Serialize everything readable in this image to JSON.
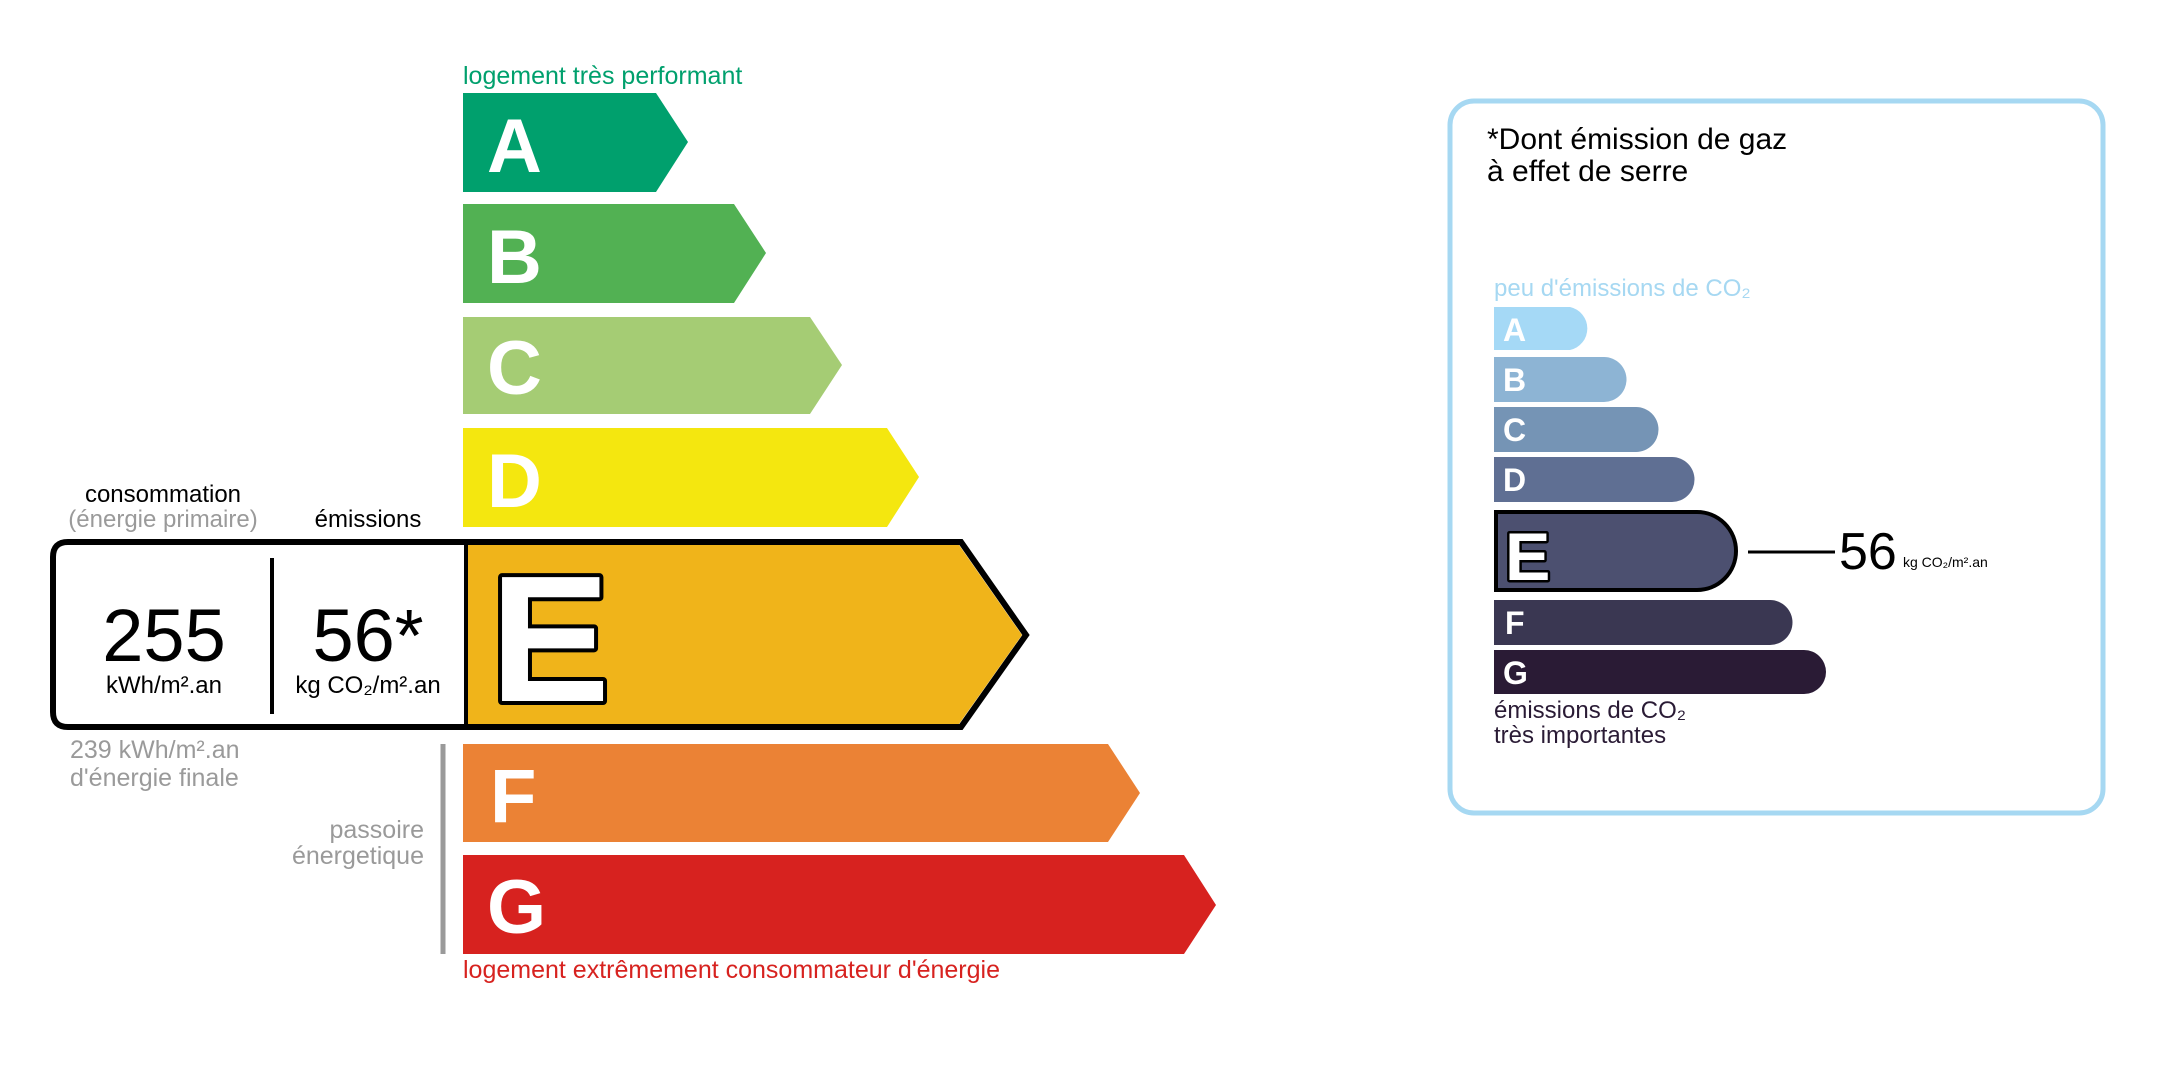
{
  "energy": {
    "top_label": "logement très performant",
    "bottom_label": "logement extrêmement consommateur d'énergie",
    "classes": [
      {
        "letter": "A",
        "color": "#00a06d"
      },
      {
        "letter": "B",
        "color": "#52b153"
      },
      {
        "letter": "C",
        "color": "#a5cc74"
      },
      {
        "letter": "D",
        "color": "#f4e70f"
      },
      {
        "letter": "E",
        "color": "#f0b41a"
      },
      {
        "letter": "F",
        "color": "#eb8235"
      },
      {
        "letter": "G",
        "color": "#d7221f"
      }
    ],
    "current_class": "E",
    "consumption_label": "consommation",
    "consumption_sublabel": "(énergie primaire)",
    "emissions_label": "émissions",
    "consumption_value": "255",
    "consumption_unit": "kWh/m².an",
    "emissions_value": "56*",
    "emissions_unit": "kg CO₂/m².an",
    "final_energy_line1": "239 kWh/m².an",
    "final_energy_line2": "d'énergie finale",
    "passoire_line1": "passoire",
    "passoire_line2": "énergetique",
    "top_color": "#00a06d",
    "bottom_color": "#d7221f"
  },
  "ghg": {
    "title_line1": "*Dont émission de gaz",
    "title_line2": "à effet de serre",
    "top_label": "peu d'émissions de CO₂",
    "bottom_line1": "émissions de CO₂",
    "bottom_line2": "très importantes",
    "classes": [
      {
        "letter": "A",
        "color": "#a5d9f6"
      },
      {
        "letter": "B",
        "color": "#8db4d4"
      },
      {
        "letter": "C",
        "color": "#7594b5"
      },
      {
        "letter": "D",
        "color": "#5f6f93"
      },
      {
        "letter": "E",
        "color": "#4c5070"
      },
      {
        "letter": "F",
        "color": "#3a3752"
      },
      {
        "letter": "G",
        "color": "#2a1b35"
      }
    ],
    "current_class": "E",
    "value": "56",
    "unit": "kg CO₂/m².an",
    "border_color": "#a6d8f2"
  }
}
